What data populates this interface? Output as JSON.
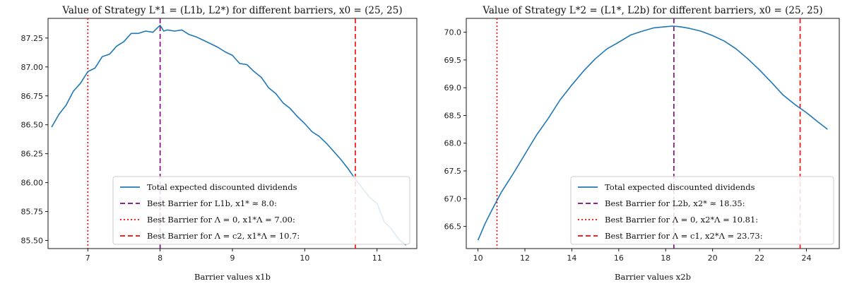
{
  "chart_data": [
    {
      "type": "line",
      "title": "Value of Strategy L*1 = (L1b, L2*) for different barriers, x0 = (25, 25)",
      "xlabel": "Barrier values x1b",
      "ylabel": "",
      "xlim": [
        6.45,
        11.55
      ],
      "ylim": [
        85.43,
        87.42
      ],
      "xticks": [
        7,
        8,
        9,
        10,
        11
      ],
      "yticks": [
        85.5,
        85.75,
        86.0,
        86.25,
        86.5,
        86.75,
        87.0,
        87.25
      ],
      "ytick_labels": [
        "85.50",
        "85.75",
        "86.00",
        "86.25",
        "86.50",
        "86.75",
        "87.00",
        "87.25"
      ],
      "legend_position": "lower-right",
      "series": [
        {
          "name": "Total expected discounted dividends",
          "color": "#1f77b4",
          "style": "solid",
          "x": [
            6.5,
            6.6,
            6.7,
            6.8,
            6.9,
            7.0,
            7.1,
            7.2,
            7.3,
            7.4,
            7.5,
            7.6,
            7.7,
            7.8,
            7.9,
            7.95,
            8.0,
            8.05,
            8.1,
            8.2,
            8.3,
            8.4,
            8.5,
            8.6,
            8.7,
            8.8,
            8.9,
            9.0,
            9.1,
            9.2,
            9.3,
            9.4,
            9.5,
            9.6,
            9.7,
            9.8,
            9.9,
            10.0,
            10.1,
            10.2,
            10.3,
            10.4,
            10.5,
            10.6,
            10.7,
            10.8,
            10.9,
            11.0,
            11.1,
            11.2,
            11.3,
            11.4
          ],
          "y": [
            86.48,
            86.59,
            86.67,
            86.79,
            86.86,
            86.96,
            86.99,
            87.09,
            87.11,
            87.18,
            87.22,
            87.29,
            87.29,
            87.31,
            87.3,
            87.33,
            87.36,
            87.31,
            87.32,
            87.31,
            87.32,
            87.28,
            87.26,
            87.23,
            87.2,
            87.17,
            87.13,
            87.1,
            87.03,
            87.02,
            86.96,
            86.91,
            86.82,
            86.77,
            86.69,
            86.64,
            86.57,
            86.51,
            86.44,
            86.4,
            86.34,
            86.27,
            86.2,
            86.12,
            86.03,
            85.95,
            85.87,
            85.82,
            85.66,
            85.6,
            85.51,
            85.46
          ]
        }
      ],
      "vlines": [
        {
          "name": "Best Barrier for L1b, x1* ≈ 8.0:",
          "x": 8.0,
          "color": "#800080",
          "style": "dashed"
        },
        {
          "name": "Best Barrier for Λ = 0, x1*Λ = 7.00:",
          "x": 7.0,
          "color": "#ff0000",
          "style": "dotted"
        },
        {
          "name": "Best Barrier for Λ = c2, x1*Λ = 10.7:",
          "x": 10.7,
          "color": "#ff0000",
          "style": "dashed"
        }
      ]
    },
    {
      "type": "line",
      "title": "Value of Strategy L*2 = (L1*, L2b) for different barriers, x0 = (25, 25)",
      "xlabel": "Barrier values x2b",
      "ylabel": "",
      "xlim": [
        9.5,
        25.4
      ],
      "ylim": [
        66.1,
        70.25
      ],
      "xticks": [
        10,
        12,
        14,
        16,
        18,
        20,
        22,
        24
      ],
      "yticks": [
        66.5,
        67.0,
        67.5,
        68.0,
        68.5,
        69.0,
        69.5,
        70.0
      ],
      "ytick_labels": [
        "66.5",
        "67.0",
        "67.5",
        "68.0",
        "68.5",
        "69.0",
        "69.5",
        "70.0"
      ],
      "legend_position": "lower-right",
      "series": [
        {
          "name": "Total expected discounted dividends",
          "color": "#1f77b4",
          "style": "solid",
          "x": [
            10.0,
            10.3,
            10.6,
            11.0,
            11.5,
            12.0,
            12.5,
            13.0,
            13.5,
            14.0,
            14.5,
            15.0,
            15.5,
            16.0,
            16.5,
            17.0,
            17.5,
            18.0,
            18.3,
            18.6,
            19.0,
            19.5,
            20.0,
            20.5,
            21.0,
            21.5,
            22.0,
            22.5,
            23.0,
            23.5,
            24.0,
            24.5,
            24.9
          ],
          "y": [
            66.25,
            66.55,
            66.8,
            67.12,
            67.45,
            67.8,
            68.15,
            68.45,
            68.78,
            69.05,
            69.3,
            69.52,
            69.7,
            69.82,
            69.95,
            70.02,
            70.08,
            70.1,
            70.11,
            70.1,
            70.07,
            70.02,
            69.94,
            69.84,
            69.7,
            69.52,
            69.32,
            69.1,
            68.87,
            68.7,
            68.55,
            68.38,
            68.25
          ]
        }
      ],
      "vlines": [
        {
          "name": "Best Barrier for L2b, x2* ≈ 18.35:",
          "x": 18.35,
          "color": "#800080",
          "style": "dashed"
        },
        {
          "name": "Best Barrier for Λ = 0, x2*Λ = 10.81:",
          "x": 10.81,
          "color": "#ff0000",
          "style": "dotted"
        },
        {
          "name": "Best Barrier for Λ = c1, x2*Λ = 23.73:",
          "x": 23.73,
          "color": "#ff0000",
          "style": "dashed"
        }
      ]
    }
  ]
}
